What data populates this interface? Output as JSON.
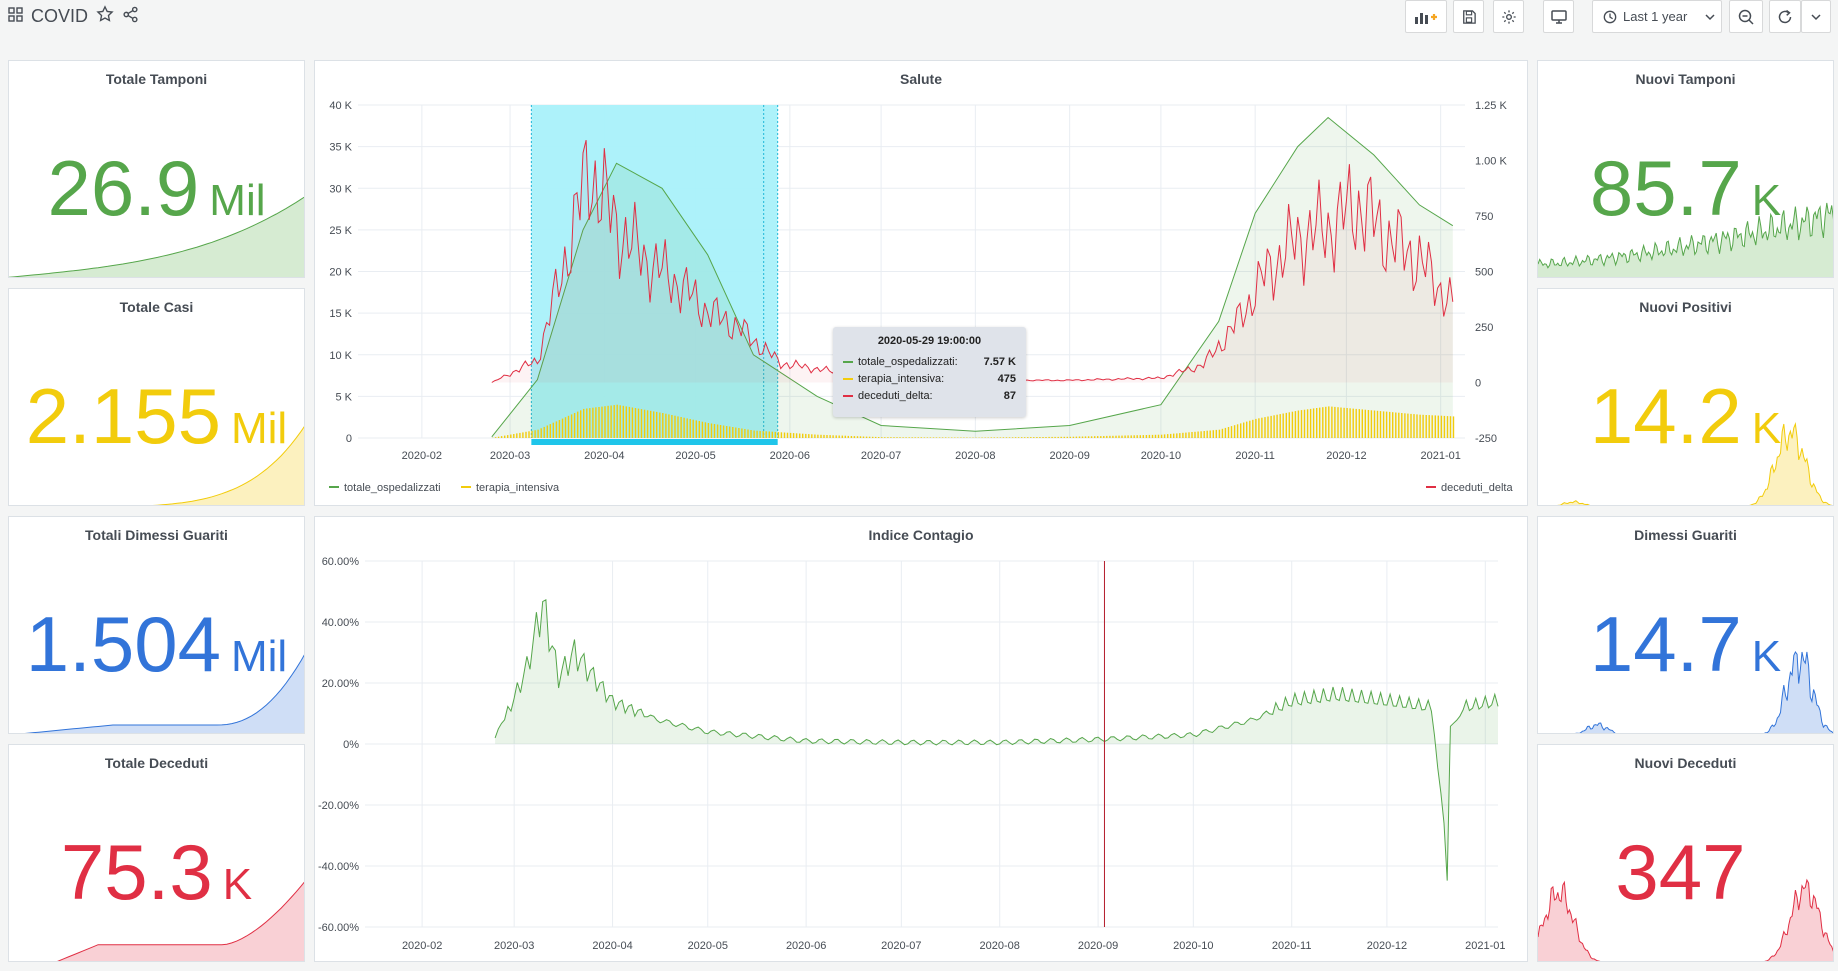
{
  "header": {
    "title": "COVID",
    "time_range": "Last 1 year"
  },
  "colors": {
    "green": "#56a64b",
    "yellow": "#f2cc0c",
    "blue": "#3274d9",
    "red": "#e02f44",
    "selection": "#a9f1fa"
  },
  "stats": [
    {
      "id": "totale-tamponi",
      "title": "Totale Tamponi",
      "value": "26.9",
      "unit": "Mil",
      "color": "#56a64b",
      "fill": "#d6ebd2"
    },
    {
      "id": "totale-casi",
      "title": "Totale Casi",
      "value": "2.155",
      "unit": "Mil",
      "color": "#f2cc0c",
      "fill": "#fcf1bf"
    },
    {
      "id": "totali-dimessi",
      "title": "Totali Dimessi Guariti",
      "value": "1.504",
      "unit": "Mil",
      "color": "#3274d9",
      "fill": "#cfdef6"
    },
    {
      "id": "totale-deceduti",
      "title": "Totale Deceduti",
      "value": "75.3",
      "unit": "K",
      "color": "#e02f44",
      "fill": "#f9d0d5"
    },
    {
      "id": "nuovi-tamponi",
      "title": "Nuovi Tamponi",
      "value": "85.7",
      "unit": "K",
      "color": "#56a64b",
      "fill": "#d6ebd2"
    },
    {
      "id": "nuovi-positivi",
      "title": "Nuovi Positivi",
      "value": "14.2",
      "unit": "K",
      "color": "#f2cc0c",
      "fill": "#fcf1bf"
    },
    {
      "id": "dimessi-guariti",
      "title": "Dimessi Guariti",
      "value": "14.7",
      "unit": "K",
      "color": "#3274d9",
      "fill": "#cfdef6"
    },
    {
      "id": "nuovi-deceduti",
      "title": "Nuovi Deceduti",
      "value": "347",
      "unit": "",
      "color": "#e02f44",
      "fill": "#f9d0d5"
    }
  ],
  "salute": {
    "title": "Salute",
    "tooltip": {
      "time": "2020-05-29 19:00:00",
      "rows": [
        {
          "name": "totale_ospedalizzati:",
          "value": "7.57 K",
          "color": "#56a64b"
        },
        {
          "name": "terapia_intensiva:",
          "value": "475",
          "color": "#f2cc0c"
        },
        {
          "name": "deceduti_delta:",
          "value": "87",
          "color": "#e02f44"
        }
      ]
    }
  },
  "indice": {
    "title": "Indice Contagio"
  },
  "chart_data": [
    {
      "type": "line",
      "title": "Salute",
      "x_ticks": [
        "2020-02",
        "2020-03",
        "2020-04",
        "2020-05",
        "2020-06",
        "2020-07",
        "2020-08",
        "2020-09",
        "2020-10",
        "2020-11",
        "2020-12",
        "2021-01"
      ],
      "y_left_ticks": [
        "0",
        "5 K",
        "10 K",
        "15 K",
        "20 K",
        "25 K",
        "30 K",
        "35 K",
        "40 K"
      ],
      "y_left_range": [
        0,
        40000
      ],
      "y_right_ticks": [
        "-250",
        "0",
        "250",
        "500",
        "750",
        "1.00 K",
        "1.25 K"
      ],
      "y_right_range": [
        -250,
        1250
      ],
      "legend_left": [
        "totale_ospedalizzati",
        "terapia_intensiva"
      ],
      "legend_right": [
        "deceduti_delta"
      ],
      "series": [
        {
          "name": "totale_ospedalizzati",
          "axis": "left",
          "x": [
            "2020-02-24",
            "2020-03-10",
            "2020-03-25",
            "2020-04-05",
            "2020-04-20",
            "2020-05-05",
            "2020-05-20",
            "2020-06-10",
            "2020-07-01",
            "2020-08-01",
            "2020-09-01",
            "2020-10-01",
            "2020-10-20",
            "2020-11-01",
            "2020-11-15",
            "2020-11-25",
            "2020-12-10",
            "2020-12-25",
            "2021-01-05"
          ],
          "values": [
            150,
            7000,
            25000,
            33000,
            30000,
            22000,
            10000,
            5000,
            1500,
            800,
            1500,
            4000,
            14000,
            27000,
            35000,
            38500,
            34000,
            28000,
            25500
          ]
        },
        {
          "name": "terapia_intensiva",
          "axis": "left",
          "x": [
            "2020-02-24",
            "2020-03-10",
            "2020-03-25",
            "2020-04-05",
            "2020-04-20",
            "2020-05-05",
            "2020-05-20",
            "2020-06-10",
            "2020-07-01",
            "2020-08-01",
            "2020-09-01",
            "2020-10-01",
            "2020-10-20",
            "2020-11-01",
            "2020-11-15",
            "2020-11-25",
            "2020-12-10",
            "2020-12-25",
            "2021-01-05"
          ],
          "values": [
            30,
            1000,
            3500,
            4000,
            3000,
            1800,
            900,
            400,
            100,
            50,
            150,
            400,
            1000,
            2300,
            3300,
            3800,
            3300,
            2800,
            2600
          ]
        },
        {
          "name": "deceduti_delta",
          "axis": "right",
          "x": [
            "2020-02-24",
            "2020-03-10",
            "2020-03-20",
            "2020-03-27",
            "2020-04-05",
            "2020-04-15",
            "2020-04-25",
            "2020-05-05",
            "2020-05-15",
            "2020-05-29",
            "2020-06-15",
            "2020-07-01",
            "2020-08-01",
            "2020-09-01",
            "2020-10-01",
            "2020-10-15",
            "2020-10-25",
            "2020-11-05",
            "2020-11-15",
            "2020-11-25",
            "2020-12-05",
            "2020-12-15",
            "2020-12-25",
            "2021-01-05"
          ],
          "values": [
            0,
            100,
            600,
            970,
            700,
            550,
            450,
            320,
            250,
            87,
            50,
            20,
            10,
            10,
            20,
            80,
            250,
            500,
            650,
            700,
            800,
            650,
            550,
            350
          ]
        }
      ]
    },
    {
      "type": "area",
      "title": "Indice Contagio",
      "x_ticks": [
        "2020-02",
        "2020-03",
        "2020-04",
        "2020-05",
        "2020-06",
        "2020-07",
        "2020-08",
        "2020-09",
        "2020-10",
        "2020-11",
        "2020-12",
        "2021-01"
      ],
      "y_ticks": [
        "60.00%",
        "40.00%",
        "20.00%",
        "0%",
        "-20.00%",
        "-40.00%",
        "-60.00%"
      ],
      "y_range": [
        -60,
        60
      ],
      "series": [
        {
          "name": "indice",
          "x": [
            "2020-02-24",
            "2020-03-01",
            "2020-03-05",
            "2020-03-10",
            "2020-03-15",
            "2020-03-20",
            "2020-04-01",
            "2020-04-15",
            "2020-05-01",
            "2020-06-01",
            "2020-07-01",
            "2020-08-01",
            "2020-09-01",
            "2020-10-01",
            "2020-10-20",
            "2020-11-01",
            "2020-11-15",
            "2020-12-01",
            "2020-12-15",
            "2020-12-20",
            "2020-12-21",
            "2020-12-25",
            "2021-01-05"
          ],
          "values": [
            2,
            15,
            25,
            46,
            22,
            30,
            14,
            8,
            4,
            1,
            0.5,
            0.5,
            1.5,
            3,
            8,
            14,
            16,
            14,
            12,
            -38,
            5,
            12,
            14
          ]
        }
      ]
    }
  ]
}
